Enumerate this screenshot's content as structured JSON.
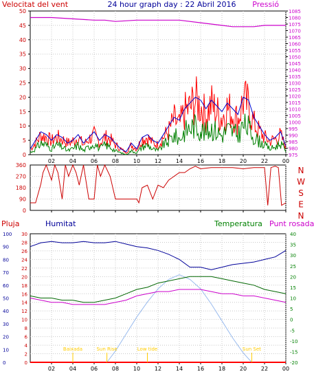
{
  "header": {
    "wind_label": "Velocitat del vent",
    "title": "24 hour graph day : 22 Abril 2016",
    "pressure_label": "Pressió"
  },
  "lower_labels": {
    "rain": "Pluja",
    "humidity": "Humitat",
    "temperature": "Temperatura",
    "dewpoint": "Punt rosada"
  },
  "colors": {
    "wind_gust": "#ff0000",
    "wind_avg": "#0000cc",
    "wind_low": "#008000",
    "pressure": "#cc00cc",
    "direction": "#cc0000",
    "humidity": "#000099",
    "temperature": "#006600",
    "dewpoint": "#cc00cc",
    "rain": "#ff0000",
    "solar": "#99bbee",
    "sun_events": "#ffcc00",
    "axis_left": "#cc0000",
    "axis_right": "#cc00cc",
    "axis_green": "#008000",
    "axis_blue": "#000099"
  },
  "chart_data": [
    {
      "type": "line",
      "name": "wind-pressure",
      "x_ticks": [
        "02",
        "04",
        "06",
        "08",
        "10",
        "12",
        "14",
        "16",
        "18",
        "20",
        "22",
        "00"
      ],
      "y_left": {
        "label": "Velocitat del vent",
        "ylim": [
          0,
          50
        ],
        "ticks": [
          "0",
          "5",
          "10",
          "15",
          "20",
          "25",
          "30",
          "35",
          "40",
          "45",
          "50"
        ]
      },
      "y_right": {
        "label": "Pressió",
        "ylim": [
          975,
          1085
        ],
        "ticks": [
          "975",
          "980",
          "985",
          "990",
          "995",
          "1000",
          "1005",
          "1010",
          "1015",
          "1020",
          "1025",
          "1030",
          "1035",
          "1040",
          "1045",
          "1050",
          "1055",
          "1060",
          "1065",
          "1070",
          "1075",
          "1080",
          "1085"
        ]
      },
      "pressure": {
        "x": [
          0,
          2,
          4,
          6,
          7,
          8,
          10,
          12,
          14,
          16,
          18,
          19,
          20,
          21,
          22,
          23,
          24
        ],
        "y": [
          1080,
          1080,
          1079,
          1078,
          1078,
          1077,
          1078,
          1078,
          1078,
          1076,
          1074,
          1073,
          1073,
          1073,
          1074,
          1074,
          1074
        ]
      },
      "wind_gust_envelope": {
        "x": [
          0,
          0.5,
          1,
          1.5,
          2,
          2.5,
          3,
          3.5,
          4,
          4.5,
          5,
          5.5,
          6,
          6.5,
          7,
          7.5,
          8,
          8.5,
          9,
          9.5,
          10,
          10.5,
          11,
          11.5,
          12,
          12.5,
          13,
          13.5,
          14,
          14.5,
          15,
          15.5,
          16,
          16.5,
          17,
          17.5,
          18,
          18.5,
          19,
          19.5,
          20,
          20.5,
          21,
          21.5,
          22,
          22.5,
          23,
          23.5,
          24
        ],
        "y": [
          3,
          6,
          10,
          9,
          7,
          9,
          8,
          6,
          7,
          9,
          5,
          8,
          10,
          6,
          9,
          8,
          5,
          3,
          1,
          5,
          3,
          8,
          9,
          6,
          5,
          9,
          12,
          18,
          15,
          22,
          24,
          28,
          25,
          20,
          26,
          22,
          19,
          24,
          21,
          18,
          28,
          25,
          16,
          12,
          9,
          7,
          8,
          10,
          4
        ]
      },
      "wind_avg_envelope": {
        "x": [
          0,
          0.5,
          1,
          1.5,
          2,
          2.5,
          3,
          3.5,
          4,
          4.5,
          5,
          5.5,
          6,
          6.5,
          7,
          7.5,
          8,
          8.5,
          9,
          9.5,
          10,
          10.5,
          11,
          11.5,
          12,
          12.5,
          13,
          13.5,
          14,
          14.5,
          15,
          15.5,
          16,
          16.5,
          17,
          17.5,
          18,
          18.5,
          19,
          19.5,
          20,
          20.5,
          21,
          21.5,
          22,
          22.5,
          23,
          23.5,
          24
        ],
        "y": [
          2,
          5,
          8,
          7,
          5,
          7,
          6,
          4,
          5,
          7,
          4,
          6,
          8,
          5,
          7,
          6,
          4,
          2,
          1,
          4,
          2,
          6,
          7,
          5,
          4,
          7,
          10,
          13,
          12,
          16,
          18,
          20,
          19,
          16,
          19,
          17,
          15,
          18,
          16,
          14,
          20,
          19,
          13,
          10,
          7,
          5,
          6,
          8,
          3
        ]
      },
      "wind_low_envelope": {
        "x": [
          0,
          0.5,
          1,
          1.5,
          2,
          2.5,
          3,
          3.5,
          4,
          4.5,
          5,
          5.5,
          6,
          6.5,
          7,
          7.5,
          8,
          8.5,
          9,
          9.5,
          10,
          10.5,
          11,
          11.5,
          12,
          12.5,
          13,
          13.5,
          14,
          14.5,
          15,
          15.5,
          16,
          16.5,
          17,
          17.5,
          18,
          18.5,
          19,
          19.5,
          20,
          20.5,
          21,
          21.5,
          22,
          22.5,
          23,
          23.5,
          24
        ],
        "y": [
          1,
          3,
          6,
          5,
          3,
          5,
          4,
          2,
          3,
          5,
          2,
          4,
          6,
          3,
          5,
          4,
          2,
          1,
          0,
          2,
          1,
          4,
          5,
          3,
          2,
          5,
          7,
          10,
          8,
          12,
          14,
          15,
          13,
          11,
          14,
          12,
          10,
          13,
          12,
          10,
          15,
          14,
          9,
          7,
          5,
          3,
          4,
          6,
          2
        ]
      }
    },
    {
      "type": "line",
      "name": "wind-direction",
      "y_left": {
        "ylim": [
          0,
          360
        ],
        "ticks": [
          "0",
          "90",
          "180",
          "270",
          "360"
        ]
      },
      "y_right_labels": [
        "N",
        "W",
        "S",
        "E",
        "N"
      ],
      "direction": {
        "x": [
          0,
          0.5,
          1,
          1.2,
          1.5,
          2,
          2.3,
          2.6,
          3,
          3.3,
          3.6,
          4,
          4.3,
          4.6,
          5,
          5.5,
          6,
          6.3,
          6.6,
          7,
          7.5,
          8,
          8.5,
          9,
          9.5,
          10,
          10.2,
          10.5,
          11,
          11.5,
          12,
          12.5,
          13,
          13.5,
          14,
          14.5,
          15,
          15.5,
          16,
          17,
          18,
          19,
          20,
          21,
          22,
          22.3,
          22.6,
          23,
          23.3,
          23.6,
          24
        ],
        "y": [
          60,
          60,
          210,
          300,
          360,
          240,
          360,
          300,
          90,
          360,
          270,
          360,
          300,
          200,
          360,
          90,
          90,
          360,
          270,
          360,
          270,
          90,
          90,
          90,
          90,
          90,
          60,
          180,
          200,
          90,
          200,
          180,
          240,
          270,
          300,
          300,
          330,
          350,
          330,
          340,
          340,
          340,
          330,
          340,
          340,
          40,
          340,
          350,
          340,
          40,
          60
        ]
      }
    },
    {
      "type": "line",
      "name": "humidity-temperature",
      "y_humidity": {
        "label": "Humitat",
        "ylim": [
          0,
          100
        ],
        "ticks": [
          "0",
          "10",
          "20",
          "30",
          "40",
          "50",
          "60",
          "70",
          "80",
          "90",
          "100"
        ]
      },
      "y_rain": {
        "label": "Pluja",
        "ylim": [
          0,
          30
        ],
        "ticks": [
          "0",
          "2",
          "4",
          "6",
          "8",
          "10",
          "12",
          "14",
          "16",
          "18",
          "20",
          "22",
          "24",
          "26",
          "28",
          "30"
        ]
      },
      "y_temp": {
        "label": "Temperatura",
        "ylim": [
          -20,
          40
        ],
        "ticks": [
          "-20",
          "-15",
          "-10",
          "-5",
          "0",
          "5",
          "10",
          "15",
          "20",
          "25",
          "30",
          "35",
          "40"
        ]
      },
      "humidity": {
        "x": [
          0,
          1,
          2,
          3,
          4,
          5,
          6,
          7,
          8,
          9,
          10,
          11,
          12,
          13,
          14,
          15,
          16,
          17,
          18,
          19,
          20,
          21,
          22,
          23,
          24
        ],
        "y": [
          90,
          93,
          94,
          93,
          93,
          94,
          93,
          93,
          94,
          92,
          90,
          89,
          87,
          84,
          80,
          74,
          74,
          72,
          74,
          76,
          77,
          78,
          80,
          82,
          87
        ]
      },
      "temperature": {
        "x": [
          0,
          1,
          2,
          3,
          4,
          5,
          6,
          7,
          8,
          9,
          10,
          11,
          12,
          13,
          14,
          15,
          16,
          17,
          18,
          19,
          20,
          21,
          22,
          23,
          24
        ],
        "y": [
          11,
          10,
          10,
          9,
          9,
          8,
          8,
          9,
          10,
          12,
          14,
          15,
          17,
          18,
          19,
          20,
          20,
          20,
          19,
          18,
          17,
          16,
          14,
          13,
          12
        ]
      },
      "dewpoint": {
        "x": [
          0,
          1,
          2,
          3,
          4,
          5,
          6,
          7,
          8,
          9,
          10,
          11,
          12,
          13,
          14,
          15,
          16,
          17,
          18,
          19,
          20,
          21,
          22,
          23,
          24
        ],
        "y": [
          10,
          9,
          8,
          8,
          7,
          7,
          7,
          7,
          8,
          9,
          11,
          12,
          13,
          13,
          14,
          14,
          14,
          13,
          12,
          12,
          11,
          11,
          10,
          9,
          8
        ]
      },
      "solar_rel": {
        "x": [
          7.2,
          8,
          9,
          10,
          11,
          12,
          13,
          14,
          15,
          16,
          17,
          18,
          19,
          20,
          20.8
        ],
        "y": [
          0,
          0.12,
          0.3,
          0.48,
          0.64,
          0.78,
          0.88,
          0.93,
          0.88,
          0.78,
          0.62,
          0.44,
          0.26,
          0.1,
          0
        ]
      },
      "rain": {
        "x": [
          0,
          24
        ],
        "y": [
          0,
          0
        ]
      },
      "events": [
        {
          "label": "Baixada",
          "hour": 4
        },
        {
          "label": "Sun Rise",
          "hour": 7.2
        },
        {
          "label": "Low tide",
          "hour": 11
        },
        {
          "label": "Sun Set",
          "hour": 20.8
        }
      ]
    }
  ]
}
